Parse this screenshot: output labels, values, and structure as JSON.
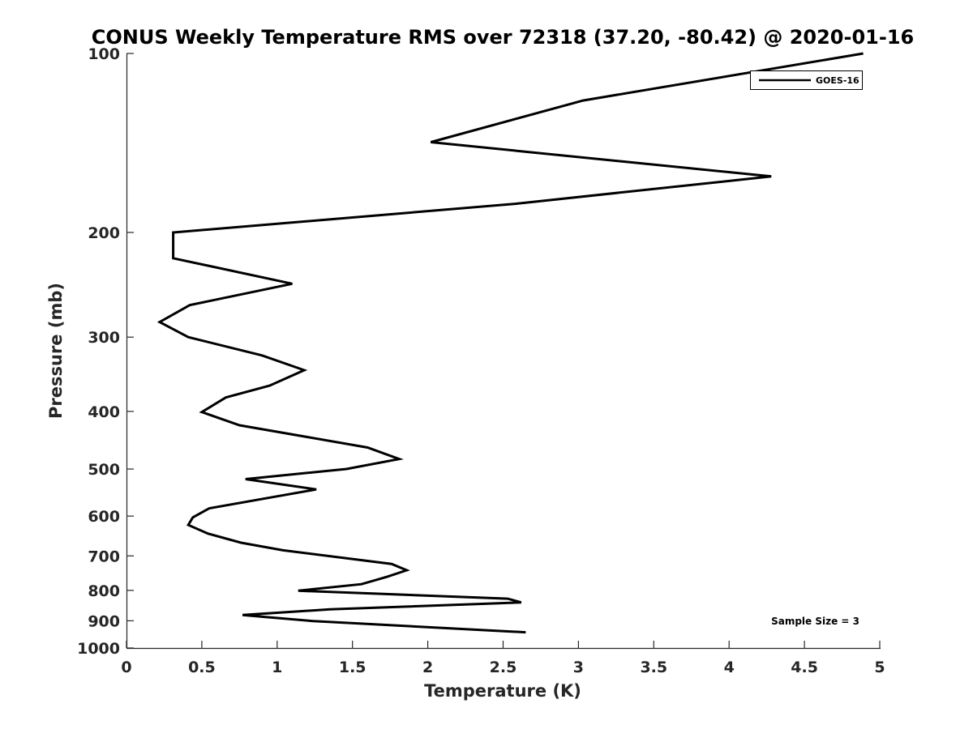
{
  "chart_data": {
    "type": "line",
    "title": "CONUS Weekly Temperature RMS over 72318 (37.20, -80.42) @ 2020-01-16",
    "xlabel": "Temperature (K)",
    "ylabel": "Pressure (mb)",
    "xlim": [
      0,
      5
    ],
    "ylim": [
      100,
      1000
    ],
    "y_scale": "log",
    "y_reversed": true,
    "x_ticks": [
      "0",
      "0.5",
      "1",
      "1.5",
      "2",
      "2.5",
      "3",
      "3.5",
      "4",
      "4.5",
      "5"
    ],
    "y_ticks": [
      "100",
      "200",
      "300",
      "400",
      "500",
      "600",
      "700",
      "800",
      "900",
      "1000"
    ],
    "grid": false,
    "legend": {
      "position": "top-right",
      "entries": [
        "GOES-16"
      ]
    },
    "annotation": "Sample Size = 3",
    "series": [
      {
        "name": "GOES-16",
        "color": "#000000",
        "points": [
          {
            "x": 4.89,
            "y": 100
          },
          {
            "x": 3.03,
            "y": 120
          },
          {
            "x": 2.02,
            "y": 141
          },
          {
            "x": 4.28,
            "y": 161
          },
          {
            "x": 2.58,
            "y": 179
          },
          {
            "x": 0.31,
            "y": 200
          },
          {
            "x": 0.31,
            "y": 221
          },
          {
            "x": 1.1,
            "y": 244
          },
          {
            "x": 0.42,
            "y": 265
          },
          {
            "x": 0.22,
            "y": 283
          },
          {
            "x": 0.41,
            "y": 300
          },
          {
            "x": 0.9,
            "y": 322
          },
          {
            "x": 1.18,
            "y": 341
          },
          {
            "x": 0.95,
            "y": 362
          },
          {
            "x": 0.66,
            "y": 379
          },
          {
            "x": 0.5,
            "y": 401
          },
          {
            "x": 0.75,
            "y": 422
          },
          {
            "x": 1.6,
            "y": 460
          },
          {
            "x": 1.81,
            "y": 481
          },
          {
            "x": 1.46,
            "y": 500
          },
          {
            "x": 0.79,
            "y": 520
          },
          {
            "x": 1.26,
            "y": 541
          },
          {
            "x": 0.55,
            "y": 582
          },
          {
            "x": 0.44,
            "y": 603
          },
          {
            "x": 0.41,
            "y": 621
          },
          {
            "x": 0.54,
            "y": 642
          },
          {
            "x": 0.76,
            "y": 665
          },
          {
            "x": 1.04,
            "y": 685
          },
          {
            "x": 1.76,
            "y": 722
          },
          {
            "x": 1.86,
            "y": 740
          },
          {
            "x": 1.73,
            "y": 759
          },
          {
            "x": 1.56,
            "y": 781
          },
          {
            "x": 1.14,
            "y": 801
          },
          {
            "x": 2.53,
            "y": 826
          },
          {
            "x": 2.62,
            "y": 838
          },
          {
            "x": 1.35,
            "y": 861
          },
          {
            "x": 0.77,
            "y": 880
          },
          {
            "x": 1.24,
            "y": 901
          },
          {
            "x": 2.65,
            "y": 941
          }
        ]
      }
    ]
  }
}
